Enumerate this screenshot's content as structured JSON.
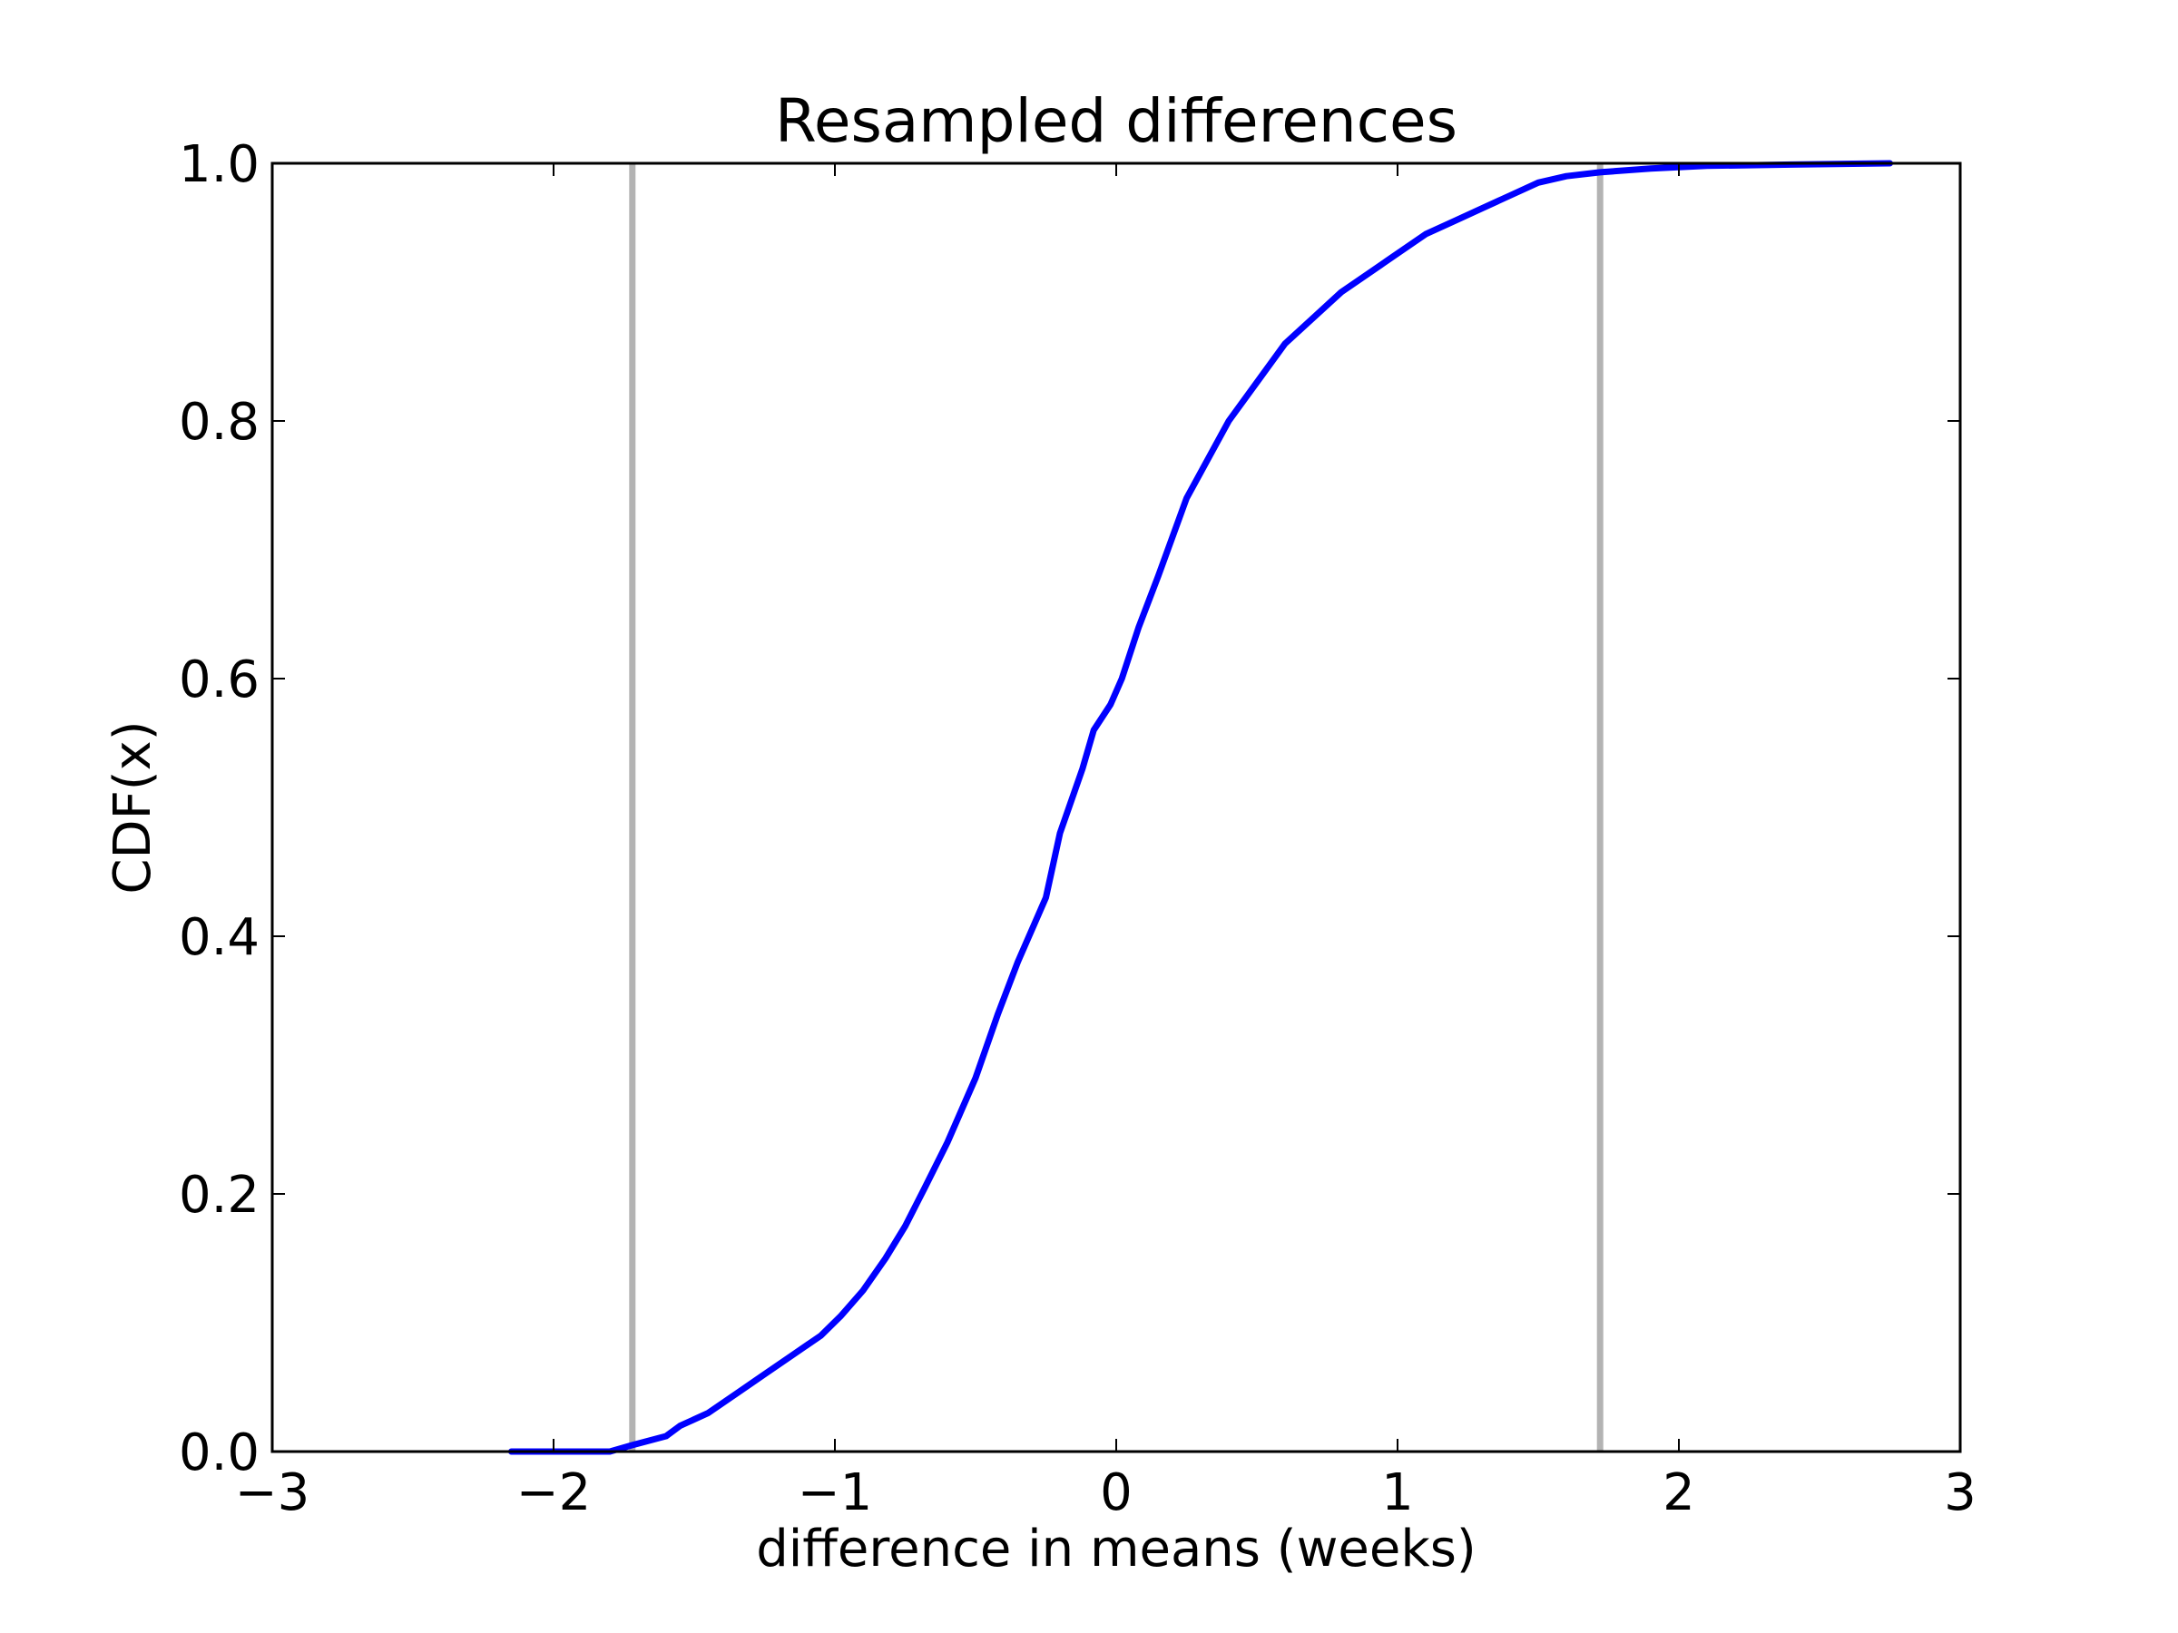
{
  "chart_data": {
    "type": "line",
    "title": "Resampled differences",
    "xlabel": "difference in means (weeks)",
    "ylabel": "CDF(x)",
    "xlim": [
      -3,
      3
    ],
    "ylim": [
      0,
      1
    ],
    "xticks": [
      -3,
      -2,
      -1,
      0,
      1,
      2,
      3
    ],
    "xtick_labels": [
      "−3",
      "−2",
      "−1",
      "0",
      "1",
      "2",
      "3"
    ],
    "yticks": [
      0,
      0.2,
      0.4,
      0.6,
      0.8,
      1.0
    ],
    "ytick_labels": [
      "0.0",
      "0.2",
      "0.4",
      "0.6",
      "0.8",
      "1.0"
    ],
    "grid": false,
    "colors": {
      "series": "#0000ff",
      "reference": "#b3b3b3",
      "axes": "#000000"
    },
    "reference_lines": [
      {
        "axis": "x",
        "value": -1.72
      },
      {
        "axis": "x",
        "value": 1.72
      }
    ],
    "series": [
      {
        "x": [
          -2.15,
          -1.8,
          -1.72,
          -1.6,
          -1.55,
          -1.45,
          -1.35,
          -1.25,
          -1.15,
          -1.05,
          -0.98,
          -0.9,
          -0.82,
          -0.75,
          -0.68,
          -0.6,
          -0.5,
          -0.42,
          -0.35,
          -0.25,
          -0.2,
          -0.12,
          -0.08,
          -0.02,
          0.02,
          0.08,
          0.15,
          0.2,
          0.25,
          0.3,
          0.4,
          0.5,
          0.6,
          0.7,
          0.8,
          0.9,
          1.0,
          1.1,
          1.2,
          1.3,
          1.4,
          1.5,
          1.6,
          1.72,
          1.9,
          2.1,
          2.4,
          2.75
        ],
        "y": [
          0.0,
          0.0,
          0.005,
          0.012,
          0.02,
          0.03,
          0.045,
          0.06,
          0.075,
          0.09,
          0.105,
          0.125,
          0.15,
          0.175,
          0.205,
          0.24,
          0.29,
          0.34,
          0.38,
          0.43,
          0.48,
          0.53,
          0.56,
          0.58,
          0.6,
          0.64,
          0.68,
          0.71,
          0.74,
          0.76,
          0.8,
          0.83,
          0.86,
          0.88,
          0.9,
          0.915,
          0.93,
          0.945,
          0.955,
          0.965,
          0.975,
          0.985,
          0.99,
          0.993,
          0.996,
          0.998,
          0.999,
          1.0
        ]
      }
    ]
  }
}
